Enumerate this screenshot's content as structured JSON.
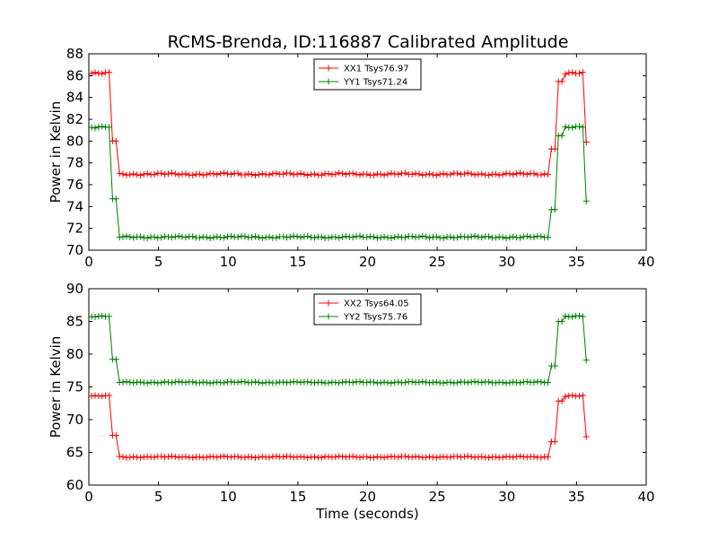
{
  "title": "RCMS-Brenda, ID:116887 Calibrated Amplitude",
  "colors": {
    "red": "#ff0000",
    "green": "#008000",
    "axis": "#000000"
  },
  "chart_data": [
    {
      "type": "line",
      "title": "RCMS-Brenda, ID:116887 Calibrated Amplitude",
      "xlabel": "",
      "ylabel": "Power in Kelvin",
      "xlim": [
        0,
        40
      ],
      "ylim": [
        70,
        88
      ],
      "xticks": [
        0,
        5,
        10,
        15,
        20,
        25,
        30,
        35,
        40
      ],
      "yticks": [
        70,
        72,
        74,
        76,
        78,
        80,
        82,
        84,
        86,
        88
      ],
      "legend_position": "top-center",
      "grid": false,
      "series": [
        {
          "name": "XX1 Tsys76.97",
          "color": "#ff0000",
          "marker": "plus",
          "low": 76.97,
          "high": 86.2,
          "edge_left": 80.0,
          "edge_right": 79.9,
          "ripple": 0.12
        },
        {
          "name": "YY1 Tsys71.24",
          "color": "#008000",
          "marker": "plus",
          "low": 71.2,
          "high": 81.3,
          "edge_left": 74.7,
          "edge_right": 74.5,
          "ripple": 0.1
        }
      ]
    },
    {
      "type": "line",
      "title": "",
      "xlabel": "Time (seconds)",
      "ylabel": "Power in Kelvin",
      "xlim": [
        0,
        40
      ],
      "ylim": [
        60,
        90
      ],
      "xticks": [
        0,
        5,
        10,
        15,
        20,
        25,
        30,
        35,
        40
      ],
      "yticks": [
        60,
        65,
        70,
        75,
        80,
        85,
        90
      ],
      "legend_position": "top-center",
      "grid": false,
      "series": [
        {
          "name": "XX2 Tsys64.05",
          "color": "#ff0000",
          "marker": "plus",
          "low": 64.3,
          "high": 73.6,
          "edge_left": 67.6,
          "edge_right": 67.4,
          "ripple": 0.12
        },
        {
          "name": "YY2 Tsys75.76",
          "color": "#008000",
          "marker": "plus",
          "low": 75.7,
          "high": 85.8,
          "edge_left": 79.2,
          "edge_right": 79.1,
          "ripple": 0.12
        }
      ]
    }
  ]
}
